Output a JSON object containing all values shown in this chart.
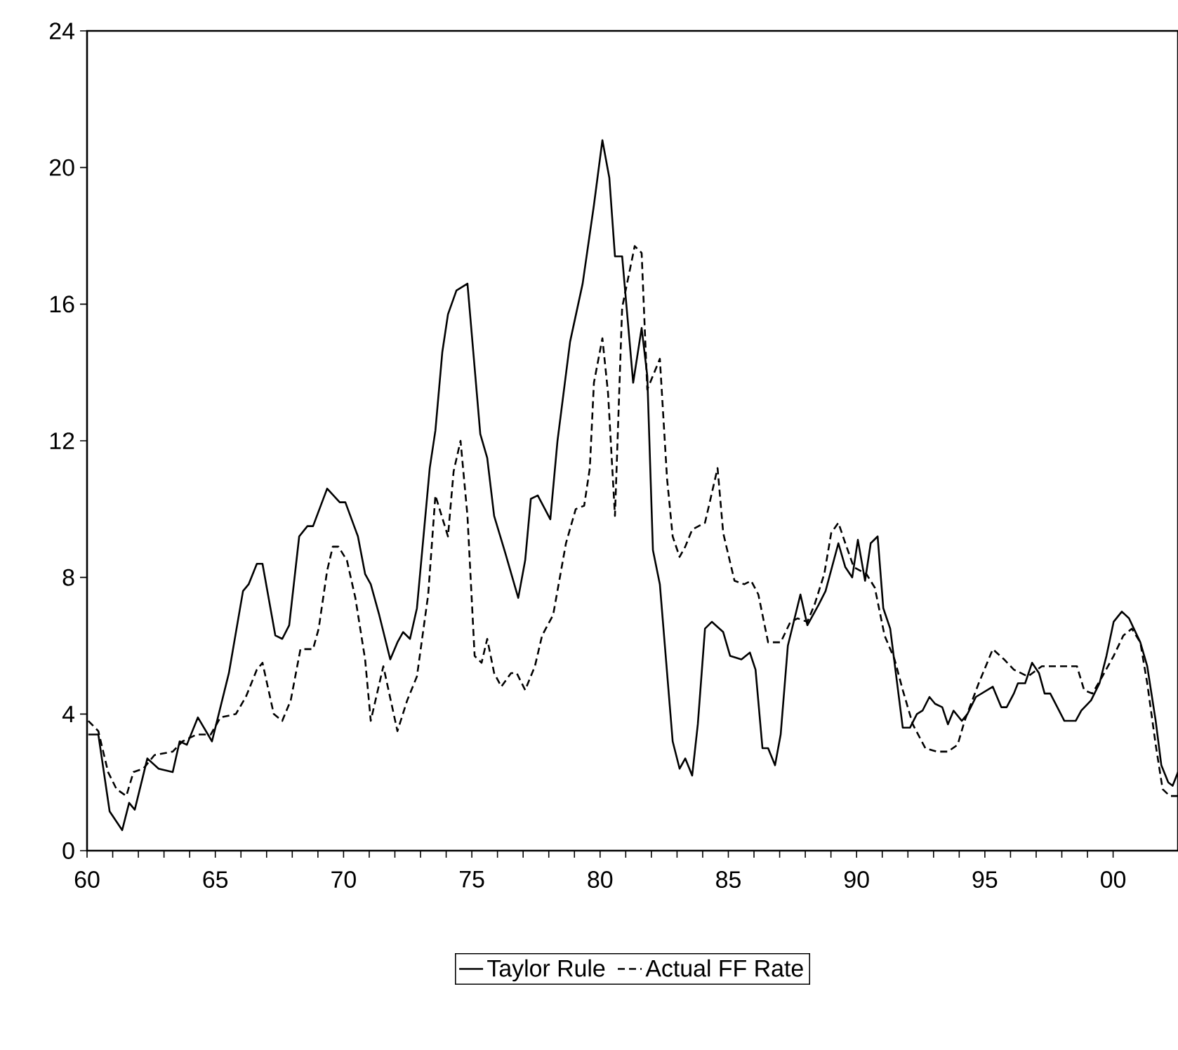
{
  "chart_data": {
    "type": "line",
    "xlim": [
      1960,
      2002.53
    ],
    "ylim": [
      0,
      24
    ],
    "xticks": [
      {
        "value": 1960,
        "label": "60"
      },
      {
        "value": 1965,
        "label": "65"
      },
      {
        "value": 1970,
        "label": "70"
      },
      {
        "value": 1975,
        "label": "75"
      },
      {
        "value": 1980,
        "label": "80"
      },
      {
        "value": 1985,
        "label": "85"
      },
      {
        "value": 1990,
        "label": "90"
      },
      {
        "value": 1995,
        "label": "95"
      },
      {
        "value": 2000,
        "label": "00"
      }
    ],
    "yticks": [
      0,
      4,
      8,
      12,
      16,
      20,
      24
    ],
    "grid": false,
    "legend": "bottom",
    "marker": "none",
    "series": [
      {
        "name": "Taylor Rule",
        "color": "#000000",
        "line_style": "solid",
        "x": [
          1960.05,
          1960.44,
          1960.88,
          1961.37,
          1961.64,
          1961.86,
          1962.35,
          1962.79,
          1963.34,
          1963.61,
          1963.89,
          1964.32,
          1964.87,
          1965.53,
          1966.08,
          1966.3,
          1966.62,
          1966.84,
          1967.34,
          1967.61,
          1967.88,
          1968.27,
          1968.59,
          1968.81,
          1969.36,
          1969.85,
          1970.07,
          1970.56,
          1970.84,
          1971.06,
          1971.39,
          1971.82,
          1972.1,
          1972.32,
          1972.59,
          1972.86,
          1973.36,
          1973.58,
          1973.85,
          1974.07,
          1974.4,
          1974.83,
          1975.33,
          1975.6,
          1975.87,
          1976.31,
          1976.81,
          1977.08,
          1977.3,
          1977.57,
          1978.06,
          1978.34,
          1978.83,
          1979.32,
          1979.76,
          1980.09,
          1980.36,
          1980.58,
          1980.86,
          1981.29,
          1981.62,
          1981.84,
          1982.06,
          1982.33,
          1982.83,
          1983.1,
          1983.32,
          1983.59,
          1983.81,
          1984.09,
          1984.36,
          1984.8,
          1985.07,
          1985.51,
          1985.84,
          1986.06,
          1986.33,
          1986.55,
          1986.82,
          1987.04,
          1987.32,
          1987.81,
          1988.08,
          1988.52,
          1988.79,
          1989.29,
          1989.56,
          1989.83,
          1990.05,
          1990.33,
          1990.55,
          1990.82,
          1991.04,
          1991.31,
          1991.8,
          1992.08,
          1992.35,
          1992.57,
          1992.84,
          1993.06,
          1993.34,
          1993.56,
          1993.78,
          1994.1,
          1994.32,
          1994.65,
          1994.87,
          1995.31,
          1995.64,
          1995.85,
          1996.13,
          1996.29,
          1996.57,
          1996.84,
          1997.11,
          1997.33,
          1997.55,
          1998.1,
          1998.54,
          1998.76,
          1999.14,
          1999.47,
          1999.74,
          2000.02,
          2000.34,
          2000.62,
          2001.06,
          2001.33,
          2001.66,
          2001.88,
          2002.15,
          2002.32,
          2002.53
        ],
        "values": [
          3.4,
          3.4,
          1.15,
          0.6,
          1.4,
          1.2,
          2.7,
          2.4,
          2.3,
          3.2,
          3.1,
          3.9,
          3.2,
          5.2,
          7.6,
          7.8,
          8.4,
          8.4,
          6.3,
          6.2,
          6.6,
          9.2,
          9.5,
          9.5,
          10.6,
          10.2,
          10.2,
          9.2,
          8.1,
          7.8,
          6.9,
          5.6,
          6.1,
          6.4,
          6.2,
          7.1,
          11.2,
          12.3,
          14.6,
          15.7,
          16.4,
          16.6,
          12.2,
          11.5,
          9.8,
          8.7,
          7.4,
          8.5,
          10.3,
          10.4,
          9.7,
          12.0,
          14.9,
          16.6,
          18.9,
          20.8,
          19.7,
          17.4,
          17.4,
          13.7,
          15.3,
          13.9,
          8.8,
          7.8,
          3.2,
          2.4,
          2.7,
          2.2,
          3.7,
          6.5,
          6.7,
          6.4,
          5.7,
          5.6,
          5.8,
          5.3,
          3.0,
          3.0,
          2.5,
          3.4,
          6.0,
          7.5,
          6.6,
          7.2,
          7.6,
          9.0,
          8.3,
          8.0,
          9.1,
          7.9,
          9.0,
          9.2,
          7.1,
          6.5,
          3.6,
          3.6,
          4.0,
          4.1,
          4.5,
          4.3,
          4.2,
          3.7,
          4.1,
          3.8,
          4.0,
          4.5,
          4.6,
          4.8,
          4.2,
          4.2,
          4.6,
          4.9,
          4.9,
          5.5,
          5.2,
          4.6,
          4.6,
          3.8,
          3.8,
          4.1,
          4.4,
          4.9,
          5.7,
          6.7,
          7.0,
          6.8,
          6.1,
          5.4,
          3.8,
          2.5,
          2.0,
          1.9,
          2.3
        ]
      },
      {
        "name": "Actual FF Rate",
        "color": "#000000",
        "line_style": "dashed",
        "x": [
          1960.05,
          1960.44,
          1960.82,
          1961.15,
          1961.53,
          1961.81,
          1962.19,
          1962.63,
          1963.34,
          1963.72,
          1964.27,
          1964.82,
          1965.2,
          1965.8,
          1966.19,
          1966.62,
          1966.84,
          1967.28,
          1967.61,
          1967.94,
          1968.32,
          1968.81,
          1969.03,
          1969.36,
          1969.58,
          1969.8,
          1970.13,
          1970.46,
          1970.84,
          1971.06,
          1971.55,
          1972.1,
          1972.48,
          1972.86,
          1973.3,
          1973.58,
          1974.07,
          1974.29,
          1974.56,
          1974.83,
          1975.11,
          1975.38,
          1975.6,
          1975.87,
          1976.15,
          1976.53,
          1976.75,
          1977.08,
          1977.46,
          1977.74,
          1978.17,
          1978.67,
          1979.05,
          1979.38,
          1979.6,
          1979.76,
          1980.09,
          1980.31,
          1980.58,
          1980.86,
          1981.35,
          1981.62,
          1981.84,
          1982.33,
          1982.61,
          1982.83,
          1983.1,
          1983.32,
          1983.59,
          1984.09,
          1984.58,
          1984.8,
          1985.24,
          1985.62,
          1985.89,
          1986.17,
          1986.55,
          1987.04,
          1987.42,
          1987.7,
          1988.08,
          1988.36,
          1988.74,
          1989.01,
          1989.29,
          1989.56,
          1989.89,
          1990.38,
          1990.71,
          1991.09,
          1991.48,
          1991.8,
          1992.19,
          1992.68,
          1993.12,
          1993.56,
          1993.94,
          1994.21,
          1994.76,
          1995.31,
          1995.75,
          1996.13,
          1996.68,
          1997.22,
          1998.59,
          1998.87,
          1999.19,
          1999.58,
          2000.02,
          2000.4,
          2000.73,
          2001.06,
          2001.33,
          2001.66,
          2001.93,
          2002.21,
          2002.53
        ],
        "values": [
          3.8,
          3.5,
          2.3,
          1.8,
          1.6,
          2.3,
          2.4,
          2.8,
          2.9,
          3.2,
          3.4,
          3.4,
          3.9,
          4.0,
          4.5,
          5.3,
          5.5,
          4.0,
          3.8,
          4.4,
          5.9,
          5.9,
          6.5,
          8.2,
          8.9,
          8.9,
          8.5,
          7.4,
          5.6,
          3.8,
          5.4,
          3.5,
          4.4,
          5.1,
          7.5,
          10.4,
          9.2,
          11.1,
          12.0,
          9.8,
          5.7,
          5.5,
          6.2,
          5.2,
          4.8,
          5.2,
          5.2,
          4.7,
          5.4,
          6.3,
          6.9,
          9.0,
          10.0,
          10.1,
          11.2,
          13.7,
          15.0,
          13.4,
          9.8,
          15.9,
          17.7,
          17.5,
          13.5,
          14.4,
          10.9,
          9.2,
          8.6,
          8.9,
          9.4,
          9.6,
          11.2,
          9.3,
          7.9,
          7.8,
          7.9,
          7.5,
          6.1,
          6.1,
          6.7,
          6.8,
          6.7,
          7.2,
          8.1,
          9.3,
          9.6,
          9.0,
          8.3,
          8.1,
          7.7,
          6.3,
          5.6,
          4.7,
          3.7,
          3.0,
          2.9,
          2.9,
          3.1,
          3.8,
          4.9,
          5.9,
          5.6,
          5.3,
          5.1,
          5.4,
          5.4,
          4.7,
          4.6,
          5.1,
          5.7,
          6.3,
          6.5,
          6.1,
          4.9,
          3.1,
          1.8,
          1.6,
          1.6
        ]
      }
    ]
  }
}
